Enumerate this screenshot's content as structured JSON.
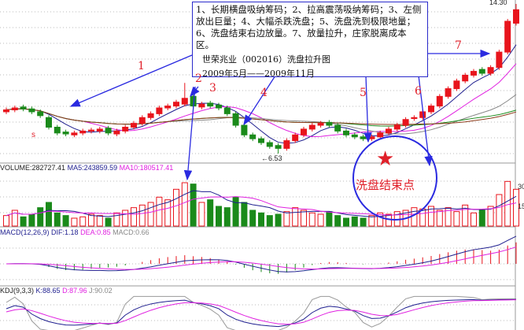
{
  "chart_data": {
    "type": "candlestick",
    "price_high_label": "14.30",
    "price_low_label": "6.53",
    "close": [
      8.8,
      8.9,
      8.85,
      8.7,
      8.5,
      7.9,
      7.6,
      7.55,
      7.6,
      7.7,
      7.75,
      7.8,
      7.6,
      7.7,
      7.9,
      8.1,
      8.4,
      8.6,
      8.9,
      9.0,
      9.2,
      9.4,
      9.0,
      9.1,
      9.0,
      8.9,
      8.6,
      8.0,
      7.5,
      7.3,
      7.1,
      6.9,
      6.8,
      7.2,
      7.5,
      7.8,
      8.0,
      8.1,
      8.0,
      7.7,
      7.5,
      7.4,
      7.3,
      7.4,
      7.6,
      7.8,
      8.0,
      8.3,
      8.4,
      8.7,
      9.0,
      9.5,
      9.9,
      10.3,
      10.6,
      10.8,
      10.7,
      11.0,
      11.8,
      13.4,
      14.0
    ],
    "open": [
      8.7,
      8.8,
      8.95,
      8.85,
      8.7,
      8.4,
      7.9,
      7.65,
      7.5,
      7.6,
      7.7,
      7.7,
      7.85,
      7.55,
      7.7,
      7.9,
      8.1,
      8.4,
      8.6,
      8.9,
      9.0,
      9.1,
      9.5,
      8.95,
      9.15,
      9.05,
      8.9,
      8.6,
      8.0,
      7.5,
      7.3,
      7.1,
      6.95,
      6.8,
      7.2,
      7.5,
      7.8,
      8.0,
      8.15,
      8.0,
      7.7,
      7.5,
      7.4,
      7.3,
      7.4,
      7.6,
      7.8,
      8.0,
      8.35,
      8.4,
      8.7,
      9.0,
      9.5,
      9.9,
      10.3,
      10.6,
      10.9,
      10.7,
      11.0,
      11.8,
      13.3
    ],
    "spike_high": {
      "index": 21,
      "value": 10.2
    },
    "volume": [
      8,
      12,
      7,
      9,
      14,
      18,
      10,
      8,
      6,
      7,
      9,
      8,
      6,
      10,
      12,
      14,
      16,
      18,
      22,
      20,
      28,
      33,
      32,
      18,
      20,
      15,
      14,
      22,
      18,
      12,
      10,
      8,
      9,
      11,
      14,
      12,
      10,
      9,
      11,
      8,
      6,
      7,
      6,
      8,
      10,
      9,
      11,
      12,
      14,
      13,
      15,
      12,
      14,
      11,
      16,
      10,
      12,
      15,
      24,
      34,
      28
    ],
    "volume_ticks": [
      15,
      30
    ],
    "volume_label": "VOLUME:282727.41",
    "ma5_label": "MA5:243859.59",
    "ma10_label": "MA10:180517.41",
    "macd_label": "MACD(12,26,9)",
    "dif_label": "DIF:1.18",
    "dea_label": "DEA:0.85",
    "macd_value_label": "MACD:0.66",
    "kdj_label": "KDJ(9,3,3)",
    "k_label": "K:88.65",
    "d_label": "D:87.96",
    "j_label": "J:90.02",
    "colors": {
      "up": "#e8141c",
      "down": "#1a8a1a",
      "dif": "#1f1f8f",
      "dea": "#e020e0",
      "ma5": "#1f1f8f",
      "ma10": "#e020e0",
      "ma20": "#888888",
      "ma60": "#1a8a1a",
      "ma120": "#8b3a1a"
    }
  },
  "annotations": {
    "note_lines": [
      "1、长期横盘吸纳筹码；2、拉高震荡吸纳筹码；3、左侧",
      "放出巨量；4、大幅杀跌洗盘；5、洗盘洗到极限地量；",
      "6、洗盘结束右边放量。7、放量拉升，庄家脱离成本区。"
    ],
    "title": "世荣兆业（002016）洗盘拉升图",
    "period": "2009年5月——2009年11月",
    "numbers": [
      "1",
      "2",
      "3",
      "4",
      "5",
      "6",
      "7"
    ],
    "circle_caption": "洗盘结束点",
    "marker_s": "s"
  }
}
